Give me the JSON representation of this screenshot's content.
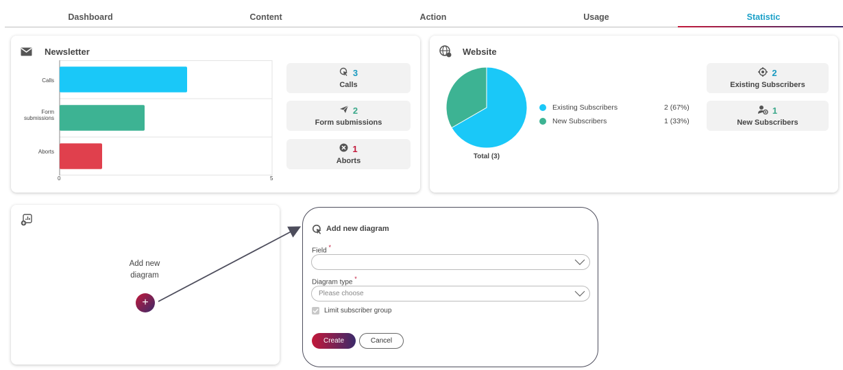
{
  "tabs": [
    {
      "label": "Dashboard"
    },
    {
      "label": "Content"
    },
    {
      "label": "Action"
    },
    {
      "label": "Usage"
    },
    {
      "label": "Statistic"
    }
  ],
  "newsletter": {
    "title": "Newsletter",
    "icon": "envelope-icon",
    "stats": [
      {
        "value": "3",
        "label": "Calls",
        "icon": "cursor-click-icon",
        "color": "#1a9ac0"
      },
      {
        "value": "2",
        "label": "Form submissions",
        "icon": "paper-plane-icon",
        "color": "#3aa88a"
      },
      {
        "value": "1",
        "label": "Aborts",
        "icon": "x-circle-icon",
        "color": "#c2183a"
      }
    ]
  },
  "website": {
    "title": "Website",
    "icon": "globe-icon",
    "total": "Total (3)",
    "legend": [
      {
        "label": "Existing Subscribers",
        "value": "2 (67%)",
        "color": "#1ac8f8"
      },
      {
        "label": "New Subscribers",
        "value": "1 (33%)",
        "color": "#3db393"
      }
    ],
    "stats": [
      {
        "value": "2",
        "label": "Existing Subscribers",
        "icon": "target-icon",
        "color": "#1a9ac0"
      },
      {
        "value": "1",
        "label": "New Subscribers",
        "icon": "user-add-icon",
        "color": "#3aa88a"
      }
    ]
  },
  "add_diagram": {
    "text": "Add new diagram",
    "icon": "chart-add-icon"
  },
  "dialog": {
    "title": "Add new diagram",
    "field_label": "Field",
    "field_value": "",
    "type_label": "Diagram type",
    "type_placeholder": "Please choose",
    "checkbox_label": "Limit subscriber group",
    "create_label": "Create",
    "cancel_label": "Cancel"
  },
  "chart_data": [
    {
      "type": "bar",
      "orientation": "horizontal",
      "categories": [
        "Calls",
        "Form submissions",
        "Aborts"
      ],
      "values": [
        3,
        2,
        1
      ],
      "colors": [
        "#1ac8f8",
        "#3db393",
        "#e0404d"
      ],
      "xlim": [
        0,
        5
      ],
      "xticks": [
        "0",
        "5"
      ],
      "grid": true
    },
    {
      "type": "pie",
      "categories": [
        "Existing Subscribers",
        "New Subscribers"
      ],
      "values": [
        2,
        1
      ],
      "colors": [
        "#1ac8f8",
        "#3db393"
      ]
    }
  ]
}
